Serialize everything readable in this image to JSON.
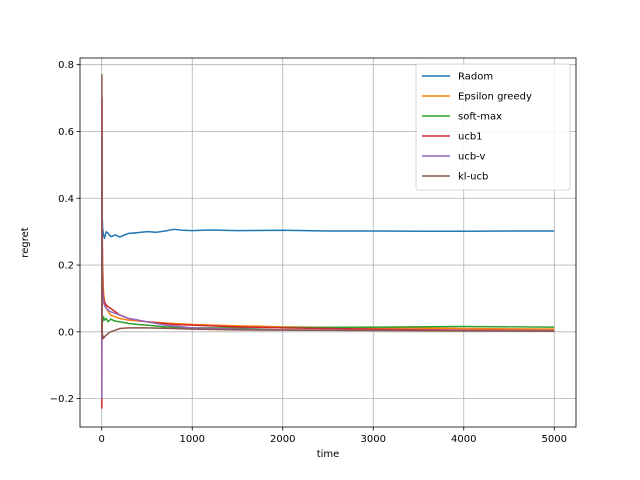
{
  "chart_data": {
    "type": "line",
    "title": "",
    "xlabel": "time",
    "ylabel": "regret",
    "xlim": [
      -240,
      5240
    ],
    "ylim": [
      -0.285,
      0.82
    ],
    "xticks": [
      0,
      1000,
      2000,
      3000,
      4000,
      5000
    ],
    "xtick_labels": [
      "0",
      "1000",
      "2000",
      "3000",
      "4000",
      "5000"
    ],
    "yticks": [
      -0.2,
      0.0,
      0.2,
      0.4,
      0.6,
      0.8
    ],
    "ytick_labels": [
      "−0.2",
      "0.0",
      "0.2",
      "0.4",
      "0.6",
      "0.8"
    ],
    "grid": true,
    "legend_position": "top-right",
    "series": [
      {
        "name": "Radom",
        "color": "#1f77b4",
        "x": [
          1,
          5,
          10,
          20,
          30,
          50,
          70,
          100,
          150,
          200,
          250,
          300,
          400,
          500,
          600,
          700,
          800,
          900,
          1000,
          1200,
          1500,
          2000,
          2500,
          3000,
          3500,
          4000,
          4500,
          5000
        ],
        "y": [
          0.1,
          0.35,
          0.31,
          0.29,
          0.28,
          0.3,
          0.295,
          0.285,
          0.29,
          0.284,
          0.29,
          0.295,
          0.297,
          0.3,
          0.298,
          0.302,
          0.307,
          0.304,
          0.303,
          0.305,
          0.303,
          0.304,
          0.302,
          0.302,
          0.301,
          0.301,
          0.302,
          0.302
        ]
      },
      {
        "name": "Epsilon greedy",
        "color": "#ff7f0e",
        "x": [
          1,
          3,
          5,
          10,
          20,
          30,
          50,
          100,
          150,
          200,
          300,
          500,
          800,
          1000,
          1500,
          2000,
          3000,
          4000,
          5000
        ],
        "y": [
          0.5,
          0.4,
          0.3,
          0.2,
          0.12,
          0.09,
          0.07,
          0.05,
          0.045,
          0.04,
          0.035,
          0.03,
          0.025,
          0.022,
          0.018,
          0.015,
          0.012,
          0.01,
          0.008
        ]
      },
      {
        "name": "soft-max",
        "color": "#2ca02c",
        "x": [
          1,
          5,
          10,
          20,
          30,
          50,
          70,
          100,
          150,
          200,
          300,
          400,
          500,
          700,
          1000,
          1500,
          2000,
          3000,
          4000,
          5000
        ],
        "y": [
          -0.02,
          0.05,
          0.03,
          0.045,
          0.035,
          0.04,
          0.03,
          0.038,
          0.032,
          0.03,
          0.025,
          0.022,
          0.02,
          0.015,
          0.012,
          0.012,
          0.013,
          0.014,
          0.016,
          0.014
        ]
      },
      {
        "name": "ucb1",
        "color": "#d62728",
        "x": [
          1,
          3,
          5,
          8,
          10,
          15,
          20,
          30,
          50,
          70,
          100,
          150,
          200,
          300,
          500,
          800,
          1000,
          1500,
          2000,
          3000,
          4000,
          5000
        ],
        "y": [
          -0.23,
          0.7,
          0.35,
          0.2,
          0.15,
          0.12,
          0.1,
          0.09,
          0.08,
          0.075,
          0.07,
          0.06,
          0.05,
          0.04,
          0.03,
          0.022,
          0.02,
          0.015,
          0.012,
          0.008,
          0.005,
          0.004
        ]
      },
      {
        "name": "ucb-v",
        "color": "#9467bd",
        "x": [
          1,
          3,
          5,
          8,
          10,
          15,
          20,
          30,
          50,
          70,
          100,
          150,
          200,
          250,
          300,
          400,
          500,
          700,
          1000,
          1500,
          2000,
          3000,
          4000,
          5000
        ],
        "y": [
          -0.2,
          0.6,
          0.3,
          0.15,
          0.12,
          0.1,
          0.09,
          0.08,
          0.07,
          0.065,
          0.06,
          0.055,
          0.05,
          0.045,
          0.04,
          0.035,
          0.03,
          0.02,
          0.012,
          0.008,
          0.006,
          0.005,
          0.004,
          0.003
        ]
      },
      {
        "name": "kl-ucb",
        "color": "#8c564b",
        "x": [
          1,
          2,
          3,
          4,
          5,
          8,
          10,
          20,
          30,
          50,
          70,
          100,
          150,
          200,
          300,
          500,
          800,
          1000,
          1500,
          2000,
          3000,
          4000,
          5000
        ],
        "y": [
          0.0,
          0.77,
          0.3,
          0.1,
          0.02,
          -0.02,
          -0.01,
          -0.02,
          -0.015,
          -0.01,
          -0.005,
          0.0,
          0.005,
          0.01,
          0.012,
          0.012,
          0.01,
          0.008,
          0.006,
          0.005,
          0.004,
          0.003,
          0.002
        ]
      }
    ]
  }
}
